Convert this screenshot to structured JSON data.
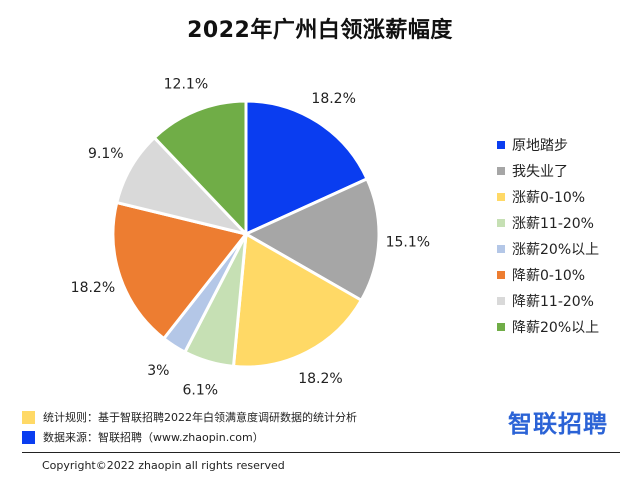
{
  "title": "2022年广州白领涨薪幅度",
  "chart_data": {
    "type": "pie",
    "categories": [
      "原地踏步",
      "我失业了",
      "涨薪0-10%",
      "涨薪11-20%",
      "涨薪20%以上",
      "降薪0-10%",
      "降薪11-20%",
      "降薪20%以上"
    ],
    "values": [
      18.2,
      15.1,
      18.2,
      6.1,
      3,
      18.2,
      9.1,
      12.1
    ],
    "value_labels": [
      "18.2%",
      "15.1%",
      "18.2%",
      "6.1%",
      "3%",
      "18.2%",
      "9.1%",
      "12.1%"
    ],
    "colors": [
      "#0a3df0",
      "#a6a6a6",
      "#ffd966",
      "#c6e0b4",
      "#b4c7e7",
      "#ed7d31",
      "#d9d9d9",
      "#70ad47"
    ],
    "start_angle": "12 o'clock",
    "direction": "clockwise",
    "legend_position": "right"
  },
  "notes": [
    {
      "text": "统计规则：基于智联招聘2022年白领满意度调研数据的统计分析",
      "color": "#ffd966"
    },
    {
      "text": "数据来源：智联招聘（www.zhaopin.com）",
      "color": "#0a3df0"
    }
  ],
  "brand": "智联招聘",
  "brand_color": "#2b63d6",
  "copyright": "Copyright©2022 zhaopin all rights reserved"
}
